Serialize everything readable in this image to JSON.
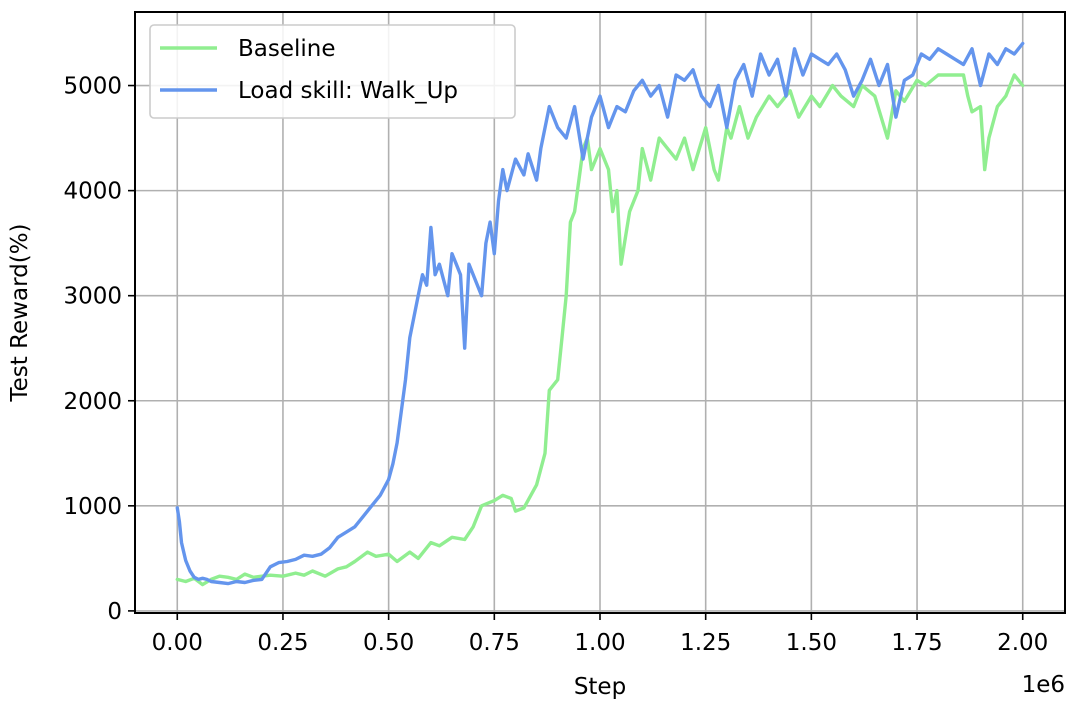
{
  "chart_data": {
    "type": "line",
    "xlabel": "Step",
    "ylabel": "Test Reward(%)",
    "x_offset_text": "1e6",
    "x_tick_labels": [
      "0.00",
      "0.25",
      "0.50",
      "0.75",
      "1.00",
      "1.25",
      "1.50",
      "1.75",
      "2.00"
    ],
    "y_tick_labels": [
      "0",
      "1000",
      "2000",
      "3000",
      "4000",
      "5000"
    ],
    "x_ticks": [
      0,
      0.25,
      0.5,
      0.75,
      1.0,
      1.25,
      1.5,
      1.75,
      2.0
    ],
    "y_ticks": [
      0,
      1000,
      2000,
      3000,
      4000,
      5000
    ],
    "xlim": [
      -0.1,
      2.1
    ],
    "ylim": [
      -20,
      5700
    ],
    "grid": true,
    "legend": "top-left",
    "series": [
      {
        "name": "Baseline",
        "color": "#90ee90",
        "x": [
          0,
          0.02,
          0.04,
          0.06,
          0.08,
          0.1,
          0.12,
          0.14,
          0.16,
          0.18,
          0.2,
          0.22,
          0.25,
          0.28,
          0.3,
          0.32,
          0.35,
          0.38,
          0.4,
          0.42,
          0.45,
          0.47,
          0.5,
          0.52,
          0.55,
          0.57,
          0.6,
          0.62,
          0.65,
          0.68,
          0.7,
          0.72,
          0.75,
          0.77,
          0.79,
          0.8,
          0.82,
          0.85,
          0.87,
          0.88,
          0.9,
          0.91,
          0.92,
          0.93,
          0.94,
          0.95,
          0.96,
          0.97,
          0.98,
          0.99,
          1.0,
          1.02,
          1.03,
          1.04,
          1.05,
          1.07,
          1.08,
          1.09,
          1.1,
          1.12,
          1.14,
          1.16,
          1.18,
          1.2,
          1.22,
          1.25,
          1.27,
          1.28,
          1.3,
          1.31,
          1.33,
          1.35,
          1.37,
          1.4,
          1.42,
          1.45,
          1.47,
          1.5,
          1.52,
          1.55,
          1.57,
          1.6,
          1.62,
          1.65,
          1.68,
          1.7,
          1.72,
          1.75,
          1.77,
          1.8,
          1.83,
          1.86,
          1.87,
          1.88,
          1.9,
          1.91,
          1.92,
          1.94,
          1.96,
          1.98,
          2.0
        ],
        "y": [
          300,
          280,
          310,
          250,
          300,
          330,
          320,
          300,
          350,
          320,
          330,
          340,
          330,
          360,
          340,
          380,
          330,
          400,
          420,
          470,
          560,
          520,
          540,
          470,
          560,
          500,
          650,
          620,
          700,
          680,
          800,
          1000,
          1050,
          1100,
          1070,
          950,
          980,
          1200,
          1500,
          2100,
          2200,
          2600,
          3000,
          3700,
          3800,
          4100,
          4400,
          4500,
          4200,
          4300,
          4400,
          4200,
          3800,
          4000,
          3300,
          3800,
          3900,
          4000,
          4400,
          4100,
          4500,
          4400,
          4300,
          4500,
          4200,
          4600,
          4200,
          4100,
          4600,
          4500,
          4800,
          4500,
          4700,
          4900,
          4800,
          4950,
          4700,
          4900,
          4800,
          5000,
          4900,
          4800,
          5000,
          4900,
          4500,
          4950,
          4850,
          5050,
          5000,
          5100,
          5100,
          5100,
          4900,
          4750,
          4800,
          4200,
          4500,
          4800,
          4900,
          5100,
          5000
        ]
      },
      {
        "name": "Load skill: Walk_Up",
        "color": "#6495ed",
        "x": [
          0,
          0.005,
          0.01,
          0.02,
          0.03,
          0.04,
          0.05,
          0.06,
          0.07,
          0.08,
          0.1,
          0.12,
          0.14,
          0.16,
          0.18,
          0.2,
          0.22,
          0.24,
          0.26,
          0.28,
          0.3,
          0.32,
          0.34,
          0.36,
          0.38,
          0.4,
          0.42,
          0.44,
          0.46,
          0.48,
          0.5,
          0.51,
          0.52,
          0.53,
          0.54,
          0.55,
          0.56,
          0.57,
          0.58,
          0.59,
          0.6,
          0.61,
          0.62,
          0.63,
          0.64,
          0.65,
          0.66,
          0.67,
          0.68,
          0.69,
          0.7,
          0.72,
          0.73,
          0.74,
          0.75,
          0.76,
          0.77,
          0.78,
          0.8,
          0.82,
          0.83,
          0.85,
          0.86,
          0.88,
          0.9,
          0.92,
          0.94,
          0.96,
          0.98,
          1.0,
          1.02,
          1.04,
          1.06,
          1.08,
          1.1,
          1.12,
          1.14,
          1.16,
          1.18,
          1.2,
          1.22,
          1.24,
          1.26,
          1.28,
          1.3,
          1.32,
          1.34,
          1.36,
          1.38,
          1.4,
          1.42,
          1.44,
          1.46,
          1.48,
          1.5,
          1.52,
          1.54,
          1.56,
          1.58,
          1.6,
          1.62,
          1.64,
          1.66,
          1.68,
          1.7,
          1.72,
          1.74,
          1.76,
          1.78,
          1.8,
          1.82,
          1.84,
          1.86,
          1.88,
          1.9,
          1.92,
          1.94,
          1.96,
          1.98,
          2.0
        ],
        "y": [
          980,
          850,
          650,
          480,
          380,
          320,
          300,
          310,
          300,
          280,
          270,
          260,
          280,
          270,
          290,
          300,
          420,
          460,
          470,
          490,
          530,
          520,
          540,
          600,
          700,
          750,
          800,
          900,
          1000,
          1100,
          1250,
          1400,
          1600,
          1900,
          2200,
          2600,
          2800,
          3000,
          3200,
          3100,
          3650,
          3200,
          3300,
          3150,
          3000,
          3400,
          3300,
          3200,
          2500,
          3300,
          3200,
          3000,
          3500,
          3700,
          3400,
          3900,
          4200,
          4000,
          4300,
          4150,
          4350,
          4100,
          4400,
          4800,
          4600,
          4500,
          4800,
          4300,
          4700,
          4900,
          4600,
          4800,
          4750,
          4950,
          5050,
          4900,
          5000,
          4700,
          5100,
          5050,
          5150,
          4900,
          4800,
          5000,
          4600,
          5050,
          5200,
          4900,
          5300,
          5100,
          5250,
          4900,
          5350,
          5100,
          5300,
          5250,
          5200,
          5300,
          5150,
          4900,
          5050,
          5250,
          5000,
          5200,
          4700,
          5050,
          5100,
          5300,
          5250,
          5350,
          5300,
          5250,
          5200,
          5350,
          5000,
          5300,
          5200,
          5350,
          5300,
          5400
        ]
      }
    ]
  }
}
